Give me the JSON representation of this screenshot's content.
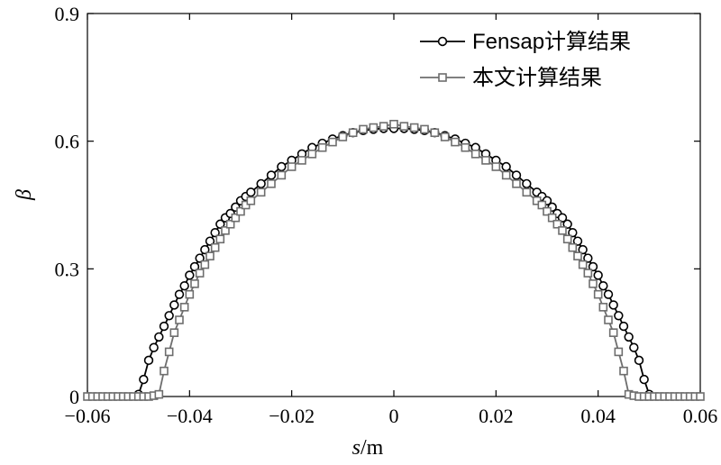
{
  "chart_data": {
    "type": "line",
    "xlabel_var": "s",
    "xlabel_unit": "/m",
    "ylabel": "β",
    "xlim": [
      -0.06,
      0.06
    ],
    "ylim": [
      0,
      0.9
    ],
    "xticks": [
      -0.06,
      -0.04,
      -0.02,
      0,
      0.02,
      0.04,
      0.06
    ],
    "xtick_labels": [
      "−0.06",
      "−0.04",
      "−0.02",
      "0",
      "0.02",
      "0.04",
      "0.06"
    ],
    "yticks": [
      0,
      0.3,
      0.6,
      0.9
    ],
    "ytick_labels": [
      "0",
      "0.3",
      "0.6",
      "0.9"
    ],
    "grid": false,
    "legend_position": "top-right",
    "series": [
      {
        "name": "Fensap计算结果",
        "color": "#000000",
        "marker": "circle",
        "x": [
          -0.05,
          -0.049,
          -0.048,
          -0.047,
          -0.046,
          -0.045,
          -0.044,
          -0.043,
          -0.042,
          -0.041,
          -0.04,
          -0.039,
          -0.038,
          -0.037,
          -0.036,
          -0.035,
          -0.034,
          -0.033,
          -0.032,
          -0.031,
          -0.03,
          -0.029,
          -0.028,
          -0.026,
          -0.024,
          -0.022,
          -0.02,
          -0.018,
          -0.016,
          -0.014,
          -0.012,
          -0.01,
          -0.008,
          -0.006,
          -0.004,
          -0.002,
          0.0,
          0.002,
          0.004,
          0.006,
          0.008,
          0.01,
          0.012,
          0.014,
          0.016,
          0.018,
          0.02,
          0.022,
          0.024,
          0.026,
          0.028,
          0.029,
          0.03,
          0.031,
          0.032,
          0.033,
          0.034,
          0.035,
          0.036,
          0.037,
          0.038,
          0.039,
          0.04,
          0.041,
          0.042,
          0.043,
          0.044,
          0.045,
          0.046,
          0.047,
          0.048,
          0.049,
          0.05
        ],
        "y": [
          0.005,
          0.04,
          0.085,
          0.115,
          0.14,
          0.165,
          0.19,
          0.215,
          0.24,
          0.26,
          0.285,
          0.305,
          0.325,
          0.345,
          0.365,
          0.385,
          0.405,
          0.42,
          0.43,
          0.445,
          0.46,
          0.47,
          0.48,
          0.5,
          0.52,
          0.54,
          0.555,
          0.57,
          0.585,
          0.595,
          0.605,
          0.613,
          0.62,
          0.625,
          0.628,
          0.63,
          0.63,
          0.63,
          0.628,
          0.625,
          0.62,
          0.613,
          0.605,
          0.595,
          0.585,
          0.57,
          0.555,
          0.54,
          0.52,
          0.5,
          0.48,
          0.47,
          0.46,
          0.445,
          0.43,
          0.42,
          0.405,
          0.385,
          0.365,
          0.345,
          0.325,
          0.305,
          0.285,
          0.26,
          0.24,
          0.215,
          0.19,
          0.165,
          0.14,
          0.115,
          0.085,
          0.04,
          0.005
        ]
      },
      {
        "name": "本文计算结果",
        "color": "#6e6e6e",
        "marker": "square",
        "x": [
          -0.06,
          -0.059,
          -0.058,
          -0.057,
          -0.056,
          -0.055,
          -0.054,
          -0.053,
          -0.052,
          -0.051,
          -0.05,
          -0.049,
          -0.048,
          -0.047,
          -0.046,
          -0.045,
          -0.044,
          -0.043,
          -0.042,
          -0.041,
          -0.04,
          -0.039,
          -0.038,
          -0.037,
          -0.036,
          -0.035,
          -0.034,
          -0.033,
          -0.032,
          -0.031,
          -0.03,
          -0.029,
          -0.028,
          -0.026,
          -0.024,
          -0.022,
          -0.02,
          -0.018,
          -0.016,
          -0.014,
          -0.012,
          -0.01,
          -0.008,
          -0.006,
          -0.004,
          -0.002,
          0.0,
          0.002,
          0.004,
          0.006,
          0.008,
          0.01,
          0.012,
          0.014,
          0.016,
          0.018,
          0.02,
          0.022,
          0.024,
          0.026,
          0.028,
          0.029,
          0.03,
          0.031,
          0.032,
          0.033,
          0.034,
          0.035,
          0.036,
          0.037,
          0.038,
          0.039,
          0.04,
          0.041,
          0.042,
          0.043,
          0.044,
          0.045,
          0.046,
          0.047,
          0.048,
          0.049,
          0.05,
          0.051,
          0.052,
          0.053,
          0.054,
          0.055,
          0.056,
          0.057,
          0.058,
          0.059,
          0.06
        ],
        "y": [
          0,
          0,
          0,
          0,
          0,
          0,
          0,
          0,
          0,
          0,
          0,
          0,
          0,
          0.002,
          0.005,
          0.06,
          0.105,
          0.15,
          0.18,
          0.21,
          0.24,
          0.265,
          0.29,
          0.31,
          0.33,
          0.35,
          0.37,
          0.39,
          0.405,
          0.42,
          0.435,
          0.45,
          0.46,
          0.48,
          0.5,
          0.52,
          0.54,
          0.555,
          0.57,
          0.585,
          0.598,
          0.61,
          0.62,
          0.628,
          0.632,
          0.635,
          0.64,
          0.635,
          0.632,
          0.628,
          0.62,
          0.61,
          0.598,
          0.585,
          0.57,
          0.555,
          0.54,
          0.52,
          0.5,
          0.48,
          0.46,
          0.45,
          0.435,
          0.42,
          0.405,
          0.39,
          0.37,
          0.35,
          0.33,
          0.31,
          0.29,
          0.265,
          0.24,
          0.21,
          0.18,
          0.15,
          0.105,
          0.06,
          0.005,
          0.002,
          0,
          0,
          0,
          0,
          0,
          0,
          0,
          0,
          0,
          0,
          0,
          0,
          0
        ]
      }
    ]
  }
}
